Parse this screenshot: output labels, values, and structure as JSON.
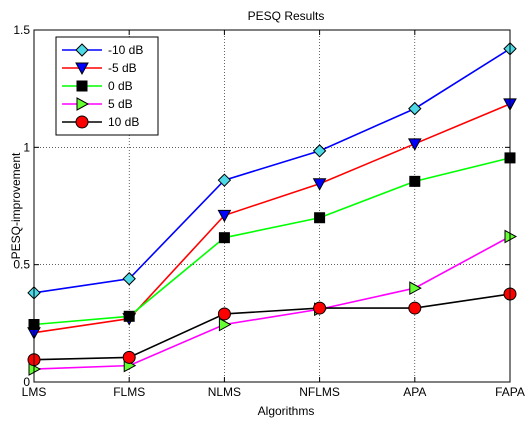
{
  "chart_data": {
    "type": "line",
    "title": "PESQ Results",
    "xlabel": "Algorithms",
    "ylabel": "PESQ-improvement",
    "categories": [
      "LMS",
      "FLMS",
      "NLMS",
      "NFLMS",
      "APA",
      "FAPA"
    ],
    "ylim": [
      0,
      1.5
    ],
    "yticks": [
      "0",
      "0.5",
      "1",
      "1.5"
    ],
    "grid": true,
    "legend_position": "top-left",
    "series": [
      {
        "name": "-10 dB",
        "color": "#0000ff",
        "marker": "diamond",
        "marker_color": "#4dd9e6",
        "values": [
          0.38,
          0.44,
          0.86,
          0.985,
          1.165,
          1.42
        ]
      },
      {
        "name": "-5 dB",
        "color": "#ff0000",
        "marker": "triangle-down",
        "marker_color": "#0000ff",
        "values": [
          0.21,
          0.27,
          0.71,
          0.845,
          1.015,
          1.185
        ]
      },
      {
        "name": "0 dB",
        "color": "#00ff00",
        "marker": "square",
        "marker_color": "#000000",
        "values": [
          0.245,
          0.28,
          0.615,
          0.7,
          0.855,
          0.955
        ]
      },
      {
        "name": "5 dB",
        "color": "#ff00ff",
        "marker": "triangle-right",
        "marker_color": "#66ff33",
        "values": [
          0.055,
          0.07,
          0.245,
          0.31,
          0.4,
          0.62
        ]
      },
      {
        "name": "10 dB",
        "color": "#000000",
        "marker": "circle",
        "marker_color": "#ff0000",
        "values": [
          0.095,
          0.105,
          0.29,
          0.315,
          0.315,
          0.375
        ]
      }
    ]
  }
}
